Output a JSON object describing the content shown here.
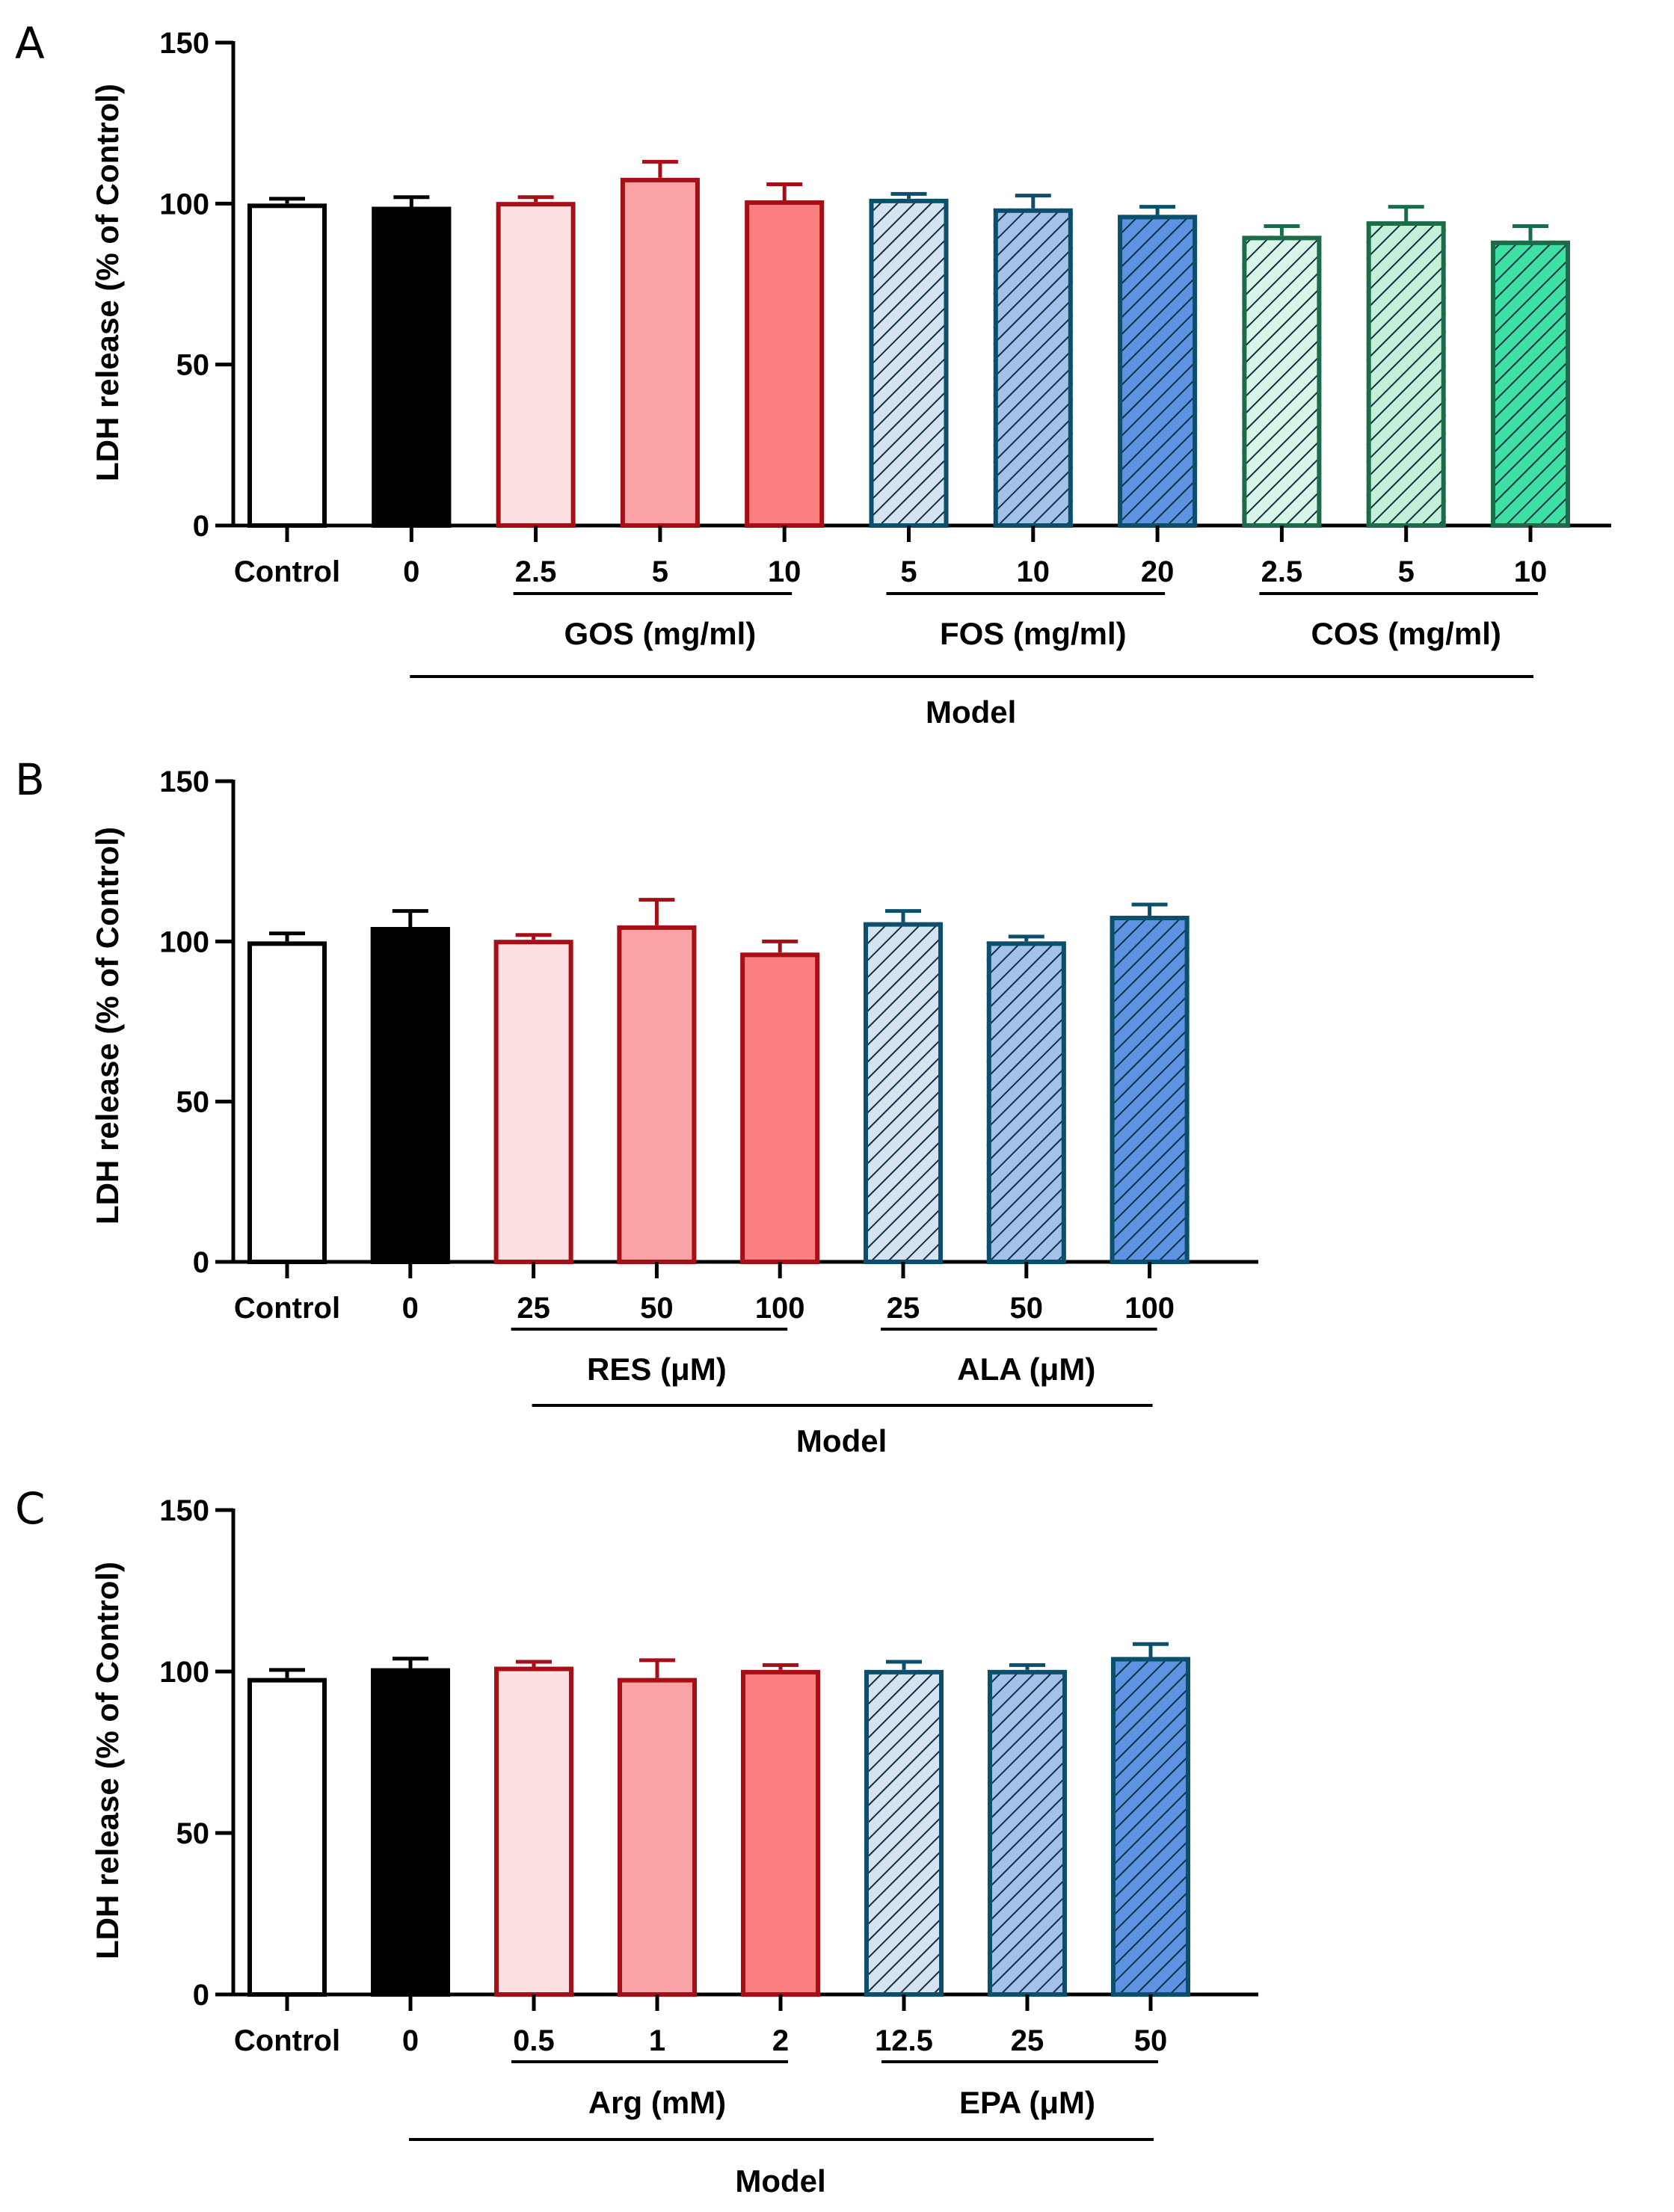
{
  "chart_data": [
    {
      "type": "bar",
      "panel": "A",
      "ylabel": "LDH release (% of Control)",
      "ylim": [
        0,
        150
      ],
      "yticks": [
        0,
        50,
        100,
        150
      ],
      "categories": [
        "Control",
        "0",
        "2.5",
        "5",
        "10",
        "5",
        "10",
        "20",
        "2.5",
        "5",
        "10"
      ],
      "values": [
        100,
        99,
        100.5,
        108,
        101,
        101.5,
        98.5,
        96.5,
        90,
        94.5,
        88.5
      ],
      "errors": [
        1.5,
        3,
        1.5,
        5,
        5,
        1.5,
        4,
        2.5,
        3,
        4.5,
        4.5
      ],
      "bar_styles": [
        {
          "fill": "#ffffff",
          "stroke": "#000000",
          "hatch": false
        },
        {
          "fill": "#000000",
          "stroke": "#000000",
          "hatch": false
        },
        {
          "fill": "#fde0e2",
          "stroke": "#a50f15",
          "hatch": false
        },
        {
          "fill": "#f9a3a6",
          "stroke": "#a50f15",
          "hatch": false
        },
        {
          "fill": "#fb7e81",
          "stroke": "#a50f15",
          "hatch": false
        },
        {
          "fill": "#d5e3f0",
          "stroke": "#0b4f6c",
          "hatch": true
        },
        {
          "fill": "#a4c1ea",
          "stroke": "#0b4f6c",
          "hatch": true
        },
        {
          "fill": "#5d93e1",
          "stroke": "#0b4f6c",
          "hatch": true
        },
        {
          "fill": "#d8f5e7",
          "stroke": "#1e6b4a",
          "hatch": true
        },
        {
          "fill": "#c2f0d9",
          "stroke": "#1e6b4a",
          "hatch": true
        },
        {
          "fill": "#3ee0a4",
          "stroke": "#1e6b4a",
          "hatch": true
        }
      ],
      "groups": [
        {
          "label": "GOS (mg/ml)",
          "from": 2,
          "to": 4
        },
        {
          "label": "FOS (mg/ml)",
          "from": 5,
          "to": 7
        },
        {
          "label": "COS (mg/ml)",
          "from": 8,
          "to": 10
        }
      ],
      "model": {
        "label": "Model",
        "from": 1,
        "to": 10
      }
    },
    {
      "type": "bar",
      "panel": "B",
      "ylabel": "LDH release (% of Control)",
      "ylim": [
        0,
        150
      ],
      "yticks": [
        0,
        50,
        100,
        150
      ],
      "categories": [
        "Control",
        "0",
        "25",
        "50",
        "100",
        "25",
        "50",
        "100"
      ],
      "values": [
        100,
        104.5,
        100.5,
        105,
        96.5,
        106,
        100,
        108
      ],
      "errors": [
        2.5,
        5,
        1.5,
        8,
        3.5,
        3.5,
        1.5,
        3.5
      ],
      "bar_styles": [
        {
          "fill": "#ffffff",
          "stroke": "#000000",
          "hatch": false
        },
        {
          "fill": "#000000",
          "stroke": "#000000",
          "hatch": false
        },
        {
          "fill": "#fde0e2",
          "stroke": "#a50f15",
          "hatch": false
        },
        {
          "fill": "#f9a3a6",
          "stroke": "#a50f15",
          "hatch": false
        },
        {
          "fill": "#fb7e81",
          "stroke": "#a50f15",
          "hatch": false
        },
        {
          "fill": "#d5e3f0",
          "stroke": "#0b4f6c",
          "hatch": true
        },
        {
          "fill": "#a4c1ea",
          "stroke": "#0b4f6c",
          "hatch": true
        },
        {
          "fill": "#5d93e1",
          "stroke": "#0b4f6c",
          "hatch": true
        }
      ],
      "groups": [
        {
          "label": "RES (μM)",
          "from": 2,
          "to": 4
        },
        {
          "label": "ALA (μM)",
          "from": 5,
          "to": 7
        }
      ],
      "model": {
        "label": "Model",
        "from": 2,
        "to": 7
      }
    },
    {
      "type": "bar",
      "panel": "C",
      "ylabel": "LDH release (% of Control)",
      "ylim": [
        0,
        150
      ],
      "yticks": [
        0,
        50,
        100,
        150
      ],
      "categories": [
        "Control",
        "0",
        "0.5",
        "1",
        "2",
        "12.5",
        "25",
        "50"
      ],
      "values": [
        98,
        101,
        101.5,
        98,
        100.5,
        100.5,
        100.5,
        104.5
      ],
      "errors": [
        2.5,
        3,
        1.5,
        5.5,
        1.5,
        2.5,
        1.5,
        4
      ],
      "bar_styles": [
        {
          "fill": "#ffffff",
          "stroke": "#000000",
          "hatch": false
        },
        {
          "fill": "#000000",
          "stroke": "#000000",
          "hatch": false
        },
        {
          "fill": "#fde0e2",
          "stroke": "#a50f15",
          "hatch": false
        },
        {
          "fill": "#f9a3a6",
          "stroke": "#a50f15",
          "hatch": false
        },
        {
          "fill": "#fb7e81",
          "stroke": "#a50f15",
          "hatch": false
        },
        {
          "fill": "#d5e3f0",
          "stroke": "#0b4f6c",
          "hatch": true
        },
        {
          "fill": "#a4c1ea",
          "stroke": "#0b4f6c",
          "hatch": true
        },
        {
          "fill": "#5d93e1",
          "stroke": "#0b4f6c",
          "hatch": true
        }
      ],
      "groups": [
        {
          "label": "Arg (mM)",
          "from": 2,
          "to": 4
        },
        {
          "label": "EPA (μM)",
          "from": 5,
          "to": 7
        }
      ],
      "model": {
        "label": "Model",
        "from": 1,
        "to": 7
      }
    }
  ]
}
